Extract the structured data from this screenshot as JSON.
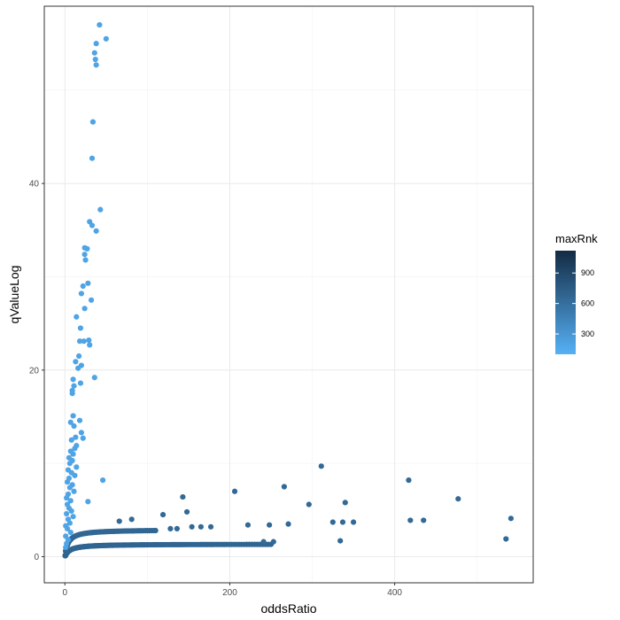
{
  "chart_data": {
    "type": "scatter",
    "xlabel": "oddsRatio",
    "ylabel": "qValueLog",
    "xlim": [
      -25,
      568
    ],
    "ylim": [
      -2.8,
      59
    ],
    "x_ticks": [
      0,
      200,
      400
    ],
    "y_ticks": [
      0,
      20,
      40
    ],
    "x_minor_ticks": [
      100,
      300,
      500
    ],
    "y_minor_ticks": [
      10,
      30,
      50
    ],
    "grid": true,
    "legend": {
      "title": "maxRnk",
      "position": "right",
      "type": "colorbar",
      "range": [
        100,
        1120
      ],
      "ticks": [
        300,
        600,
        900
      ],
      "colors": {
        "low": "#56B1F7",
        "high": "#132B43"
      }
    },
    "points_high_q": [
      {
        "x": 42,
        "y": 57.0,
        "c": 200
      },
      {
        "x": 50,
        "y": 55.5,
        "c": 200
      },
      {
        "x": 38,
        "y": 55.0,
        "c": 200
      },
      {
        "x": 36,
        "y": 54.0,
        "c": 200
      },
      {
        "x": 37,
        "y": 53.3,
        "c": 200
      },
      {
        "x": 38,
        "y": 52.7,
        "c": 200
      },
      {
        "x": 34,
        "y": 46.6,
        "c": 200
      },
      {
        "x": 33,
        "y": 42.7,
        "c": 200
      },
      {
        "x": 43,
        "y": 37.2,
        "c": 200
      },
      {
        "x": 30,
        "y": 35.9,
        "c": 200
      },
      {
        "x": 33,
        "y": 35.5,
        "c": 200
      },
      {
        "x": 38,
        "y": 34.9,
        "c": 200
      },
      {
        "x": 24,
        "y": 33.1,
        "c": 200
      },
      {
        "x": 27,
        "y": 33.0,
        "c": 200
      },
      {
        "x": 24,
        "y": 32.4,
        "c": 200
      },
      {
        "x": 25,
        "y": 31.8,
        "c": 200
      },
      {
        "x": 28,
        "y": 29.3,
        "c": 200
      },
      {
        "x": 22,
        "y": 29.0,
        "c": 200
      },
      {
        "x": 20,
        "y": 28.2,
        "c": 200
      },
      {
        "x": 32,
        "y": 27.5,
        "c": 200
      },
      {
        "x": 24,
        "y": 26.6,
        "c": 200
      },
      {
        "x": 14,
        "y": 25.7,
        "c": 200
      },
      {
        "x": 19,
        "y": 24.5,
        "c": 200
      },
      {
        "x": 29,
        "y": 23.2,
        "c": 200
      },
      {
        "x": 18,
        "y": 23.1,
        "c": 200
      },
      {
        "x": 23,
        "y": 23.1,
        "c": 200
      },
      {
        "x": 30,
        "y": 22.7,
        "c": 200
      },
      {
        "x": 17,
        "y": 21.5,
        "c": 200
      },
      {
        "x": 13,
        "y": 20.9,
        "c": 200
      },
      {
        "x": 20,
        "y": 20.5,
        "c": 200
      },
      {
        "x": 16,
        "y": 20.2,
        "c": 200
      },
      {
        "x": 36,
        "y": 19.2,
        "c": 200
      },
      {
        "x": 10,
        "y": 19.0,
        "c": 200
      },
      {
        "x": 19,
        "y": 18.6,
        "c": 200
      },
      {
        "x": 11,
        "y": 18.3,
        "c": 200
      },
      {
        "x": 9,
        "y": 17.8,
        "c": 200
      },
      {
        "x": 9,
        "y": 17.5,
        "c": 200
      },
      {
        "x": 10,
        "y": 15.1,
        "c": 200
      },
      {
        "x": 18,
        "y": 14.6,
        "c": 200
      },
      {
        "x": 7,
        "y": 14.4,
        "c": 200
      },
      {
        "x": 11,
        "y": 14.0,
        "c": 200
      },
      {
        "x": 20,
        "y": 13.3,
        "c": 200
      },
      {
        "x": 13,
        "y": 12.8,
        "c": 200
      },
      {
        "x": 22,
        "y": 12.7,
        "c": 200
      },
      {
        "x": 8,
        "y": 12.5,
        "c": 200
      },
      {
        "x": 14,
        "y": 11.9,
        "c": 200
      },
      {
        "x": 12,
        "y": 11.6,
        "c": 200
      },
      {
        "x": 7,
        "y": 11.3,
        "c": 200
      },
      {
        "x": 10,
        "y": 11.0,
        "c": 200
      },
      {
        "x": 5,
        "y": 10.6,
        "c": 200
      },
      {
        "x": 9,
        "y": 10.3,
        "c": 200
      },
      {
        "x": 6,
        "y": 10.0,
        "c": 200
      },
      {
        "x": 14,
        "y": 9.6,
        "c": 200
      },
      {
        "x": 4,
        "y": 9.3,
        "c": 200
      },
      {
        "x": 8,
        "y": 9.0,
        "c": 200
      },
      {
        "x": 12,
        "y": 8.7,
        "c": 200
      },
      {
        "x": 5,
        "y": 8.4,
        "c": 200
      },
      {
        "x": 46,
        "y": 8.2,
        "c": 200
      },
      {
        "x": 3,
        "y": 8.0,
        "c": 200
      },
      {
        "x": 9,
        "y": 7.7,
        "c": 200
      },
      {
        "x": 6,
        "y": 7.4,
        "c": 200
      },
      {
        "x": 11,
        "y": 7.0,
        "c": 200
      },
      {
        "x": 4,
        "y": 6.7,
        "c": 200
      },
      {
        "x": 2,
        "y": 6.3,
        "c": 200
      },
      {
        "x": 7,
        "y": 6.0,
        "c": 200
      },
      {
        "x": 28,
        "y": 5.9,
        "c": 200
      },
      {
        "x": 3,
        "y": 5.6,
        "c": 200
      },
      {
        "x": 5,
        "y": 5.2,
        "c": 200
      },
      {
        "x": 8,
        "y": 4.9,
        "c": 200
      },
      {
        "x": 2,
        "y": 4.6,
        "c": 200
      },
      {
        "x": 10,
        "y": 4.3,
        "c": 200
      },
      {
        "x": 4,
        "y": 4.0,
        "c": 200
      },
      {
        "x": 6,
        "y": 3.6,
        "c": 200
      },
      {
        "x": 1,
        "y": 3.3,
        "c": 200
      },
      {
        "x": 3,
        "y": 3.0,
        "c": 200
      },
      {
        "x": 7,
        "y": 2.6,
        "c": 200
      },
      {
        "x": 1,
        "y": 2.2,
        "c": 200
      },
      {
        "x": 4,
        "y": 1.8,
        "c": 200
      },
      {
        "x": 2,
        "y": 1.4,
        "c": 200
      },
      {
        "x": 1,
        "y": 1.0,
        "c": 200
      }
    ],
    "points_outliers": [
      {
        "x": 311,
        "y": 9.7,
        "c": 650
      },
      {
        "x": 417,
        "y": 8.2,
        "c": 650
      },
      {
        "x": 266,
        "y": 7.5,
        "c": 650
      },
      {
        "x": 206,
        "y": 7.0,
        "c": 650
      },
      {
        "x": 143,
        "y": 6.4,
        "c": 650
      },
      {
        "x": 477,
        "y": 6.2,
        "c": 650
      },
      {
        "x": 340,
        "y": 5.8,
        "c": 650
      },
      {
        "x": 296,
        "y": 5.6,
        "c": 650
      },
      {
        "x": 119,
        "y": 4.5,
        "c": 650
      },
      {
        "x": 148,
        "y": 4.8,
        "c": 650
      },
      {
        "x": 541,
        "y": 4.1,
        "c": 650
      },
      {
        "x": 81,
        "y": 4.0,
        "c": 650
      },
      {
        "x": 66,
        "y": 3.8,
        "c": 650
      },
      {
        "x": 419,
        "y": 3.9,
        "c": 650
      },
      {
        "x": 435,
        "y": 3.9,
        "c": 650
      },
      {
        "x": 325,
        "y": 3.7,
        "c": 650
      },
      {
        "x": 337,
        "y": 3.7,
        "c": 650
      },
      {
        "x": 350,
        "y": 3.7,
        "c": 650
      },
      {
        "x": 271,
        "y": 3.5,
        "c": 650
      },
      {
        "x": 248,
        "y": 3.4,
        "c": 650
      },
      {
        "x": 222,
        "y": 3.4,
        "c": 650
      },
      {
        "x": 177,
        "y": 3.2,
        "c": 650
      },
      {
        "x": 165,
        "y": 3.2,
        "c": 650
      },
      {
        "x": 154,
        "y": 3.2,
        "c": 650
      },
      {
        "x": 136,
        "y": 3.0,
        "c": 650
      },
      {
        "x": 128,
        "y": 3.0,
        "c": 650
      },
      {
        "x": 535,
        "y": 1.9,
        "c": 650
      },
      {
        "x": 334,
        "y": 1.7,
        "c": 650
      },
      {
        "x": 253,
        "y": 1.6,
        "c": 650
      },
      {
        "x": 241,
        "y": 1.6,
        "c": 650
      }
    ],
    "lower_curve": {
      "description": "dense band of points along y ≈ 1.35 - 1.35/(1 + x/6)",
      "count": 170,
      "x_range": [
        0.5,
        250
      ],
      "y_asymptote": 1.35,
      "c": 680
    },
    "middle_curve": {
      "count": 80,
      "x_range": [
        1,
        110
      ],
      "y_asymptote": 2.9,
      "c": 660
    }
  }
}
